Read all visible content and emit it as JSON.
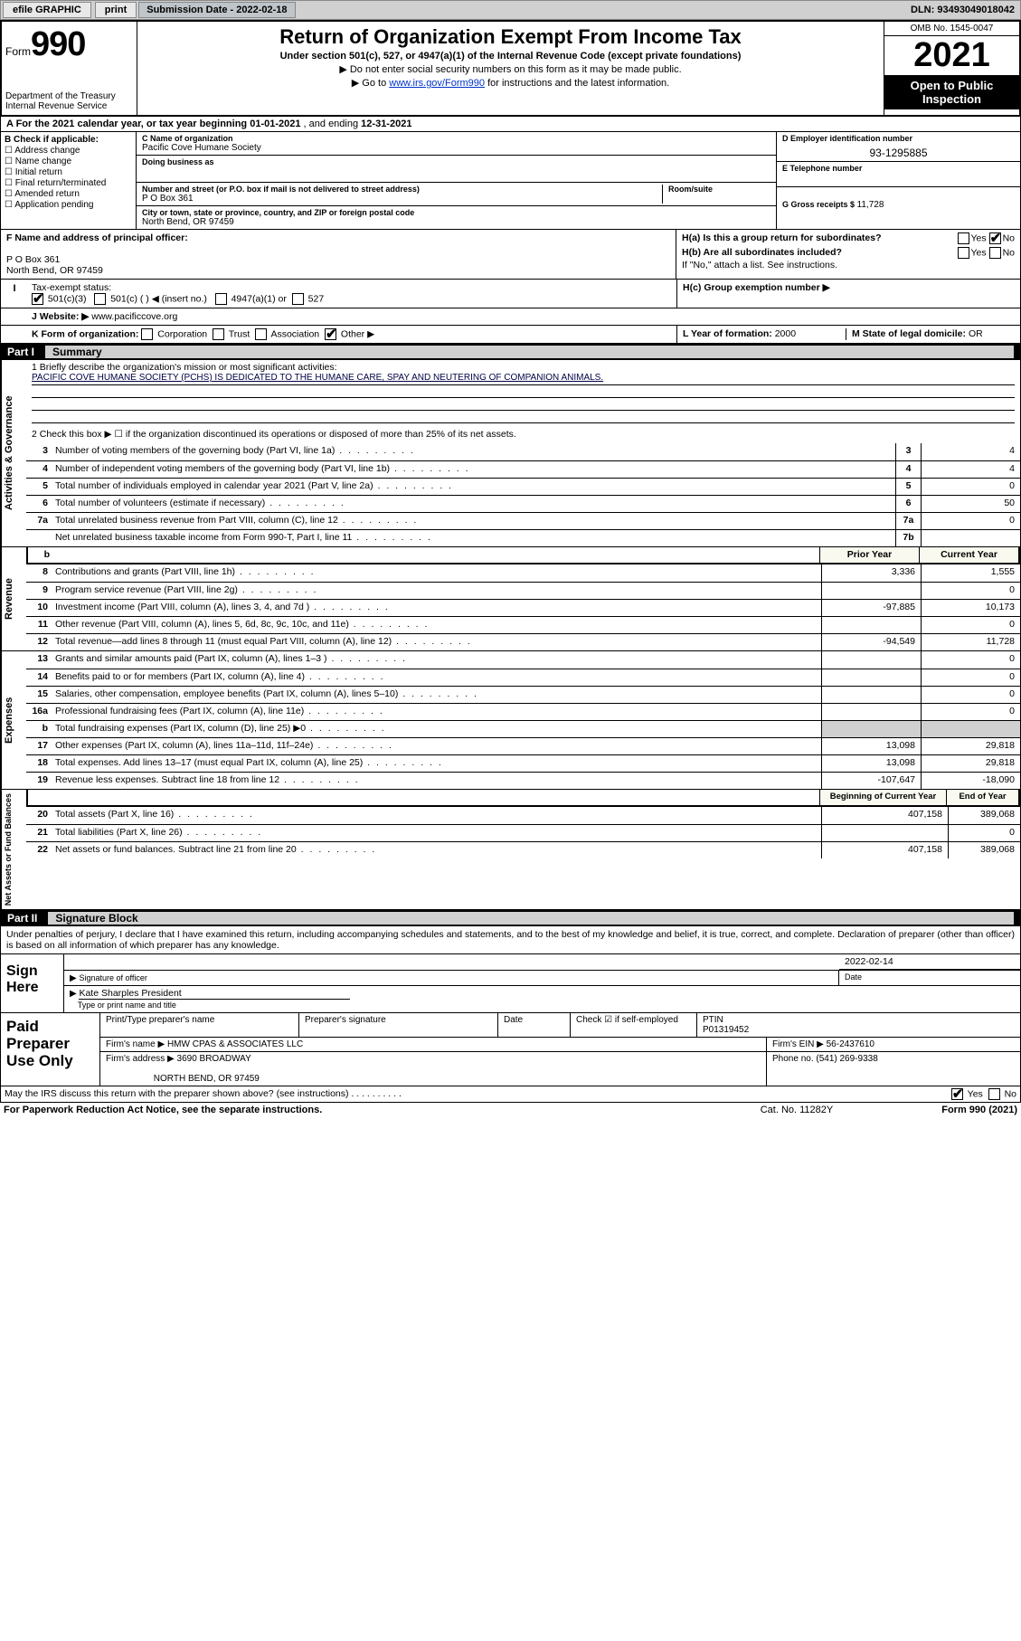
{
  "topbar": {
    "efile": "efile GRAPHIC",
    "print": "print",
    "subdate_label": "Submission Date ",
    "subdate": "- 2022-02-18",
    "dln": "DLN: 93493049018042"
  },
  "header": {
    "form_word": "Form",
    "form_no": "990",
    "dept": "Department of the Treasury",
    "irs": "Internal Revenue Service",
    "title": "Return of Organization Exempt From Income Tax",
    "sub": "Under section 501(c), 527, or 4947(a)(1) of the Internal Revenue Code (except private foundations)",
    "note1": "▶ Do not enter social security numbers on this form as it may be made public.",
    "note2_pre": "▶ Go to ",
    "note2_link": "www.irs.gov/Form990",
    "note2_post": " for instructions and the latest information.",
    "omb": "OMB No. 1545-0047",
    "year": "2021",
    "public": "Open to Public Inspection"
  },
  "rowA": {
    "label": "A For the 2021 calendar year, or tax year beginning ",
    "begin": "01-01-2021",
    "mid": "  , and ending ",
    "end": "12-31-2021"
  },
  "colB": {
    "hdr": "B Check if applicable:",
    "opts": [
      "Address change",
      "Name change",
      "Initial return",
      "Final return/terminated",
      "Amended return",
      "Application pending"
    ]
  },
  "colC": {
    "name_lbl": "C Name of organization",
    "name": "Pacific Cove Humane Society",
    "dba_lbl": "Doing business as",
    "dba": "",
    "street_lbl": "Number and street (or P.O. box if mail is not delivered to street address)",
    "street": "P O Box 361",
    "room_lbl": "Room/suite",
    "city_lbl": "City or town, state or province, country, and ZIP or foreign postal code",
    "city": "North Bend, OR  97459"
  },
  "colDE": {
    "d_lbl": "D Employer identification number",
    "d_val": "93-1295885",
    "e_lbl": "E Telephone number",
    "e_val": "",
    "g_lbl": "G Gross receipts $ ",
    "g_val": "11,728"
  },
  "rowF": {
    "f_lbl": "F Name and address of principal officer:",
    "f_addr1": "P O Box 361",
    "f_addr2": "North Bend, OR  97459",
    "ha": "H(a)  Is this a group return for subordinates?",
    "ha_no": "No",
    "hb": "H(b)  Are all subordinates included?",
    "hb_note": "If \"No,\" attach a list. See instructions."
  },
  "rowI": {
    "lbl": "Tax-exempt status:",
    "opt1": "501(c)(3)",
    "opt2": "501(c) (  ) ◀ (insert no.)",
    "opt3": "4947(a)(1) or",
    "opt4": "527",
    "hc": "H(c)  Group exemption number ▶"
  },
  "rowJ": {
    "lbl": "J  Website: ▶ ",
    "val": "www.pacificcove.org"
  },
  "rowK": {
    "lbl": "K Form of organization:",
    "opts": [
      "Corporation",
      "Trust",
      "Association",
      "Other ▶"
    ],
    "l_lbl": "L Year of formation: ",
    "l_val": "2000",
    "m_lbl": "M State of legal domicile: ",
    "m_val": "OR"
  },
  "part1": {
    "num": "Part I",
    "title": "Summary"
  },
  "section1": {
    "side": "Activities & Governance",
    "q1_lbl": "1  Briefly describe the organization's mission or most significant activities:",
    "q1_val": "PACIFIC COVE HUMANE SOCIETY (PCHS) IS DEDICATED TO THE HUMANE CARE, SPAY AND NEUTERING OF COMPANION ANIMALS.",
    "q2": "2  Check this box ▶ ☐ if the organization discontinued its operations or disposed of more than 25% of its net assets.",
    "rows": [
      {
        "n": "3",
        "t": "Number of voting members of the governing body (Part VI, line 1a)",
        "box": "3",
        "v": "4"
      },
      {
        "n": "4",
        "t": "Number of independent voting members of the governing body (Part VI, line 1b)",
        "box": "4",
        "v": "4"
      },
      {
        "n": "5",
        "t": "Total number of individuals employed in calendar year 2021 (Part V, line 2a)",
        "box": "5",
        "v": "0"
      },
      {
        "n": "6",
        "t": "Total number of volunteers (estimate if necessary)",
        "box": "6",
        "v": "50"
      },
      {
        "n": "7a",
        "t": "Total unrelated business revenue from Part VIII, column (C), line 12",
        "box": "7a",
        "v": "0"
      },
      {
        "n": "",
        "t": "Net unrelated business taxable income from Form 990-T, Part I, line 11",
        "box": "7b",
        "v": ""
      }
    ]
  },
  "section2": {
    "side": "Revenue",
    "hdr_prior": "Prior Year",
    "hdr_curr": "Current Year",
    "rows": [
      {
        "n": "8",
        "t": "Contributions and grants (Part VIII, line 1h)",
        "p": "3,336",
        "c": "1,555"
      },
      {
        "n": "9",
        "t": "Program service revenue (Part VIII, line 2g)",
        "p": "",
        "c": "0"
      },
      {
        "n": "10",
        "t": "Investment income (Part VIII, column (A), lines 3, 4, and 7d )",
        "p": "-97,885",
        "c": "10,173"
      },
      {
        "n": "11",
        "t": "Other revenue (Part VIII, column (A), lines 5, 6d, 8c, 9c, 10c, and 11e)",
        "p": "",
        "c": "0"
      },
      {
        "n": "12",
        "t": "Total revenue—add lines 8 through 11 (must equal Part VIII, column (A), line 12)",
        "p": "-94,549",
        "c": "11,728"
      }
    ]
  },
  "section3": {
    "side": "Expenses",
    "rows": [
      {
        "n": "13",
        "t": "Grants and similar amounts paid (Part IX, column (A), lines 1–3 )",
        "p": "",
        "c": "0"
      },
      {
        "n": "14",
        "t": "Benefits paid to or for members (Part IX, column (A), line 4)",
        "p": "",
        "c": "0"
      },
      {
        "n": "15",
        "t": "Salaries, other compensation, employee benefits (Part IX, column (A), lines 5–10)",
        "p": "",
        "c": "0"
      },
      {
        "n": "16a",
        "t": "Professional fundraising fees (Part IX, column (A), line 11e)",
        "p": "",
        "c": "0"
      },
      {
        "n": "b",
        "t": "Total fundraising expenses (Part IX, column (D), line 25) ▶0",
        "p": "grey",
        "c": "grey"
      },
      {
        "n": "17",
        "t": "Other expenses (Part IX, column (A), lines 11a–11d, 11f–24e)",
        "p": "13,098",
        "c": "29,818"
      },
      {
        "n": "18",
        "t": "Total expenses. Add lines 13–17 (must equal Part IX, column (A), line 25)",
        "p": "13,098",
        "c": "29,818"
      },
      {
        "n": "19",
        "t": "Revenue less expenses. Subtract line 18 from line 12",
        "p": "-107,647",
        "c": "-18,090"
      }
    ]
  },
  "section4": {
    "side": "Net Assets or Fund Balances",
    "hdr_prior": "Beginning of Current Year",
    "hdr_curr": "End of Year",
    "rows": [
      {
        "n": "20",
        "t": "Total assets (Part X, line 16)",
        "p": "407,158",
        "c": "389,068"
      },
      {
        "n": "21",
        "t": "Total liabilities (Part X, line 26)",
        "p": "",
        "c": "0"
      },
      {
        "n": "22",
        "t": "Net assets or fund balances. Subtract line 21 from line 20",
        "p": "407,158",
        "c": "389,068"
      }
    ]
  },
  "part2": {
    "num": "Part II",
    "title": "Signature Block"
  },
  "sig": {
    "decl": "Under penalties of perjury, I declare that I have examined this return, including accompanying schedules and statements, and to the best of my knowledge and belief, it is true, correct, and complete. Declaration of preparer (other than officer) is based on all information of which preparer has any knowledge.",
    "sign_here": "Sign Here",
    "sig_officer": "Signature of officer",
    "date_lbl": "Date",
    "date_val": "2022-02-14",
    "name": "Kate Sharples President",
    "name_lbl": "Type or print name and title",
    "paid": "Paid Preparer Use Only",
    "pt_lbl": "Print/Type preparer's name",
    "ps_lbl": "Preparer's signature",
    "chk_lbl": "Check ☑ if self-employed",
    "ptin_lbl": "PTIN",
    "ptin": "P01319452",
    "firm_name_lbl": "Firm's name     ▶ ",
    "firm_name": "HMW CPAS & ASSOCIATES LLC",
    "firm_ein_lbl": "Firm's EIN ▶ ",
    "firm_ein": "56-2437610",
    "firm_addr_lbl": "Firm's address ▶ ",
    "firm_addr1": "3690 BROADWAY",
    "firm_addr2": "NORTH BEND, OR  97459",
    "phone_lbl": "Phone no. ",
    "phone": "(541) 269-9338",
    "discuss": "May the IRS discuss this return with the preparer shown above? (see instructions)",
    "yes": "Yes",
    "no": "No"
  },
  "bottom": {
    "l": "For Paperwork Reduction Act Notice, see the separate instructions.",
    "m": "Cat. No. 11282Y",
    "r": "Form 990 (2021)"
  }
}
